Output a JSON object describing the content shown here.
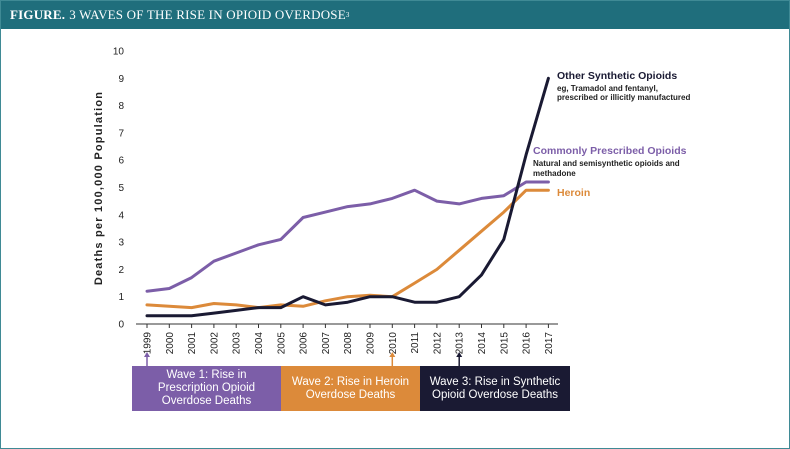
{
  "figure": {
    "label": "FIGURE.",
    "title": "3 WAVES OF THE RISE IN OPIOID OVERDOSE",
    "footnote_mark": "3"
  },
  "chart_data": {
    "type": "line",
    "x": [
      "1999",
      "2000",
      "2001",
      "2002",
      "2003",
      "2004",
      "2005",
      "2006",
      "2007",
      "2008",
      "2009",
      "2010",
      "2011",
      "2012",
      "2013",
      "2014",
      "2015",
      "2016",
      "2017"
    ],
    "ylabel": "Deaths per 100,000 Population",
    "ylim": [
      0,
      10
    ],
    "yticks": [
      0,
      1,
      2,
      3,
      4,
      5,
      6,
      7,
      8,
      9,
      10
    ],
    "grid": false,
    "series": [
      {
        "name": "Other Synthetic Opioids",
        "subtitle": "eg, Tramadol and fentanyl, prescribed or illicitly manufactured",
        "color": "#1a1a33",
        "values": [
          0.3,
          0.3,
          0.3,
          0.4,
          0.5,
          0.6,
          0.6,
          1.0,
          0.7,
          0.8,
          1.0,
          1.0,
          0.8,
          0.8,
          1.0,
          1.8,
          3.1,
          6.2,
          9.0
        ]
      },
      {
        "name": "Commonly Prescribed Opioids",
        "subtitle": "Natural and semisynthetic opioids and methadone",
        "color": "#7c5ea8",
        "values": [
          1.2,
          1.3,
          1.7,
          2.3,
          2.6,
          2.9,
          3.1,
          3.9,
          4.1,
          4.3,
          4.4,
          4.6,
          4.9,
          4.5,
          4.4,
          4.6,
          4.7,
          5.2,
          5.2
        ]
      },
      {
        "name": "Heroin",
        "subtitle": "",
        "color": "#dc8a3a",
        "values": [
          0.7,
          0.65,
          0.6,
          0.75,
          0.7,
          0.6,
          0.7,
          0.65,
          0.85,
          1.0,
          1.05,
          1.0,
          1.5,
          2.0,
          2.7,
          3.4,
          4.1,
          4.9,
          4.9
        ]
      }
    ],
    "waves": [
      {
        "label": "Wave 1: Rise in Prescription Opioid Overdose Deaths",
        "start_year": "1999",
        "color": "#7c5ea8"
      },
      {
        "label": "Wave 2: Rise in Heroin Overdose Deaths",
        "start_year": "2010",
        "color": "#dc8a3a"
      },
      {
        "label": "Wave 3: Rise in Synthetic Opioid Overdose Deaths",
        "start_year": "2013",
        "color": "#1a1a33"
      }
    ]
  }
}
